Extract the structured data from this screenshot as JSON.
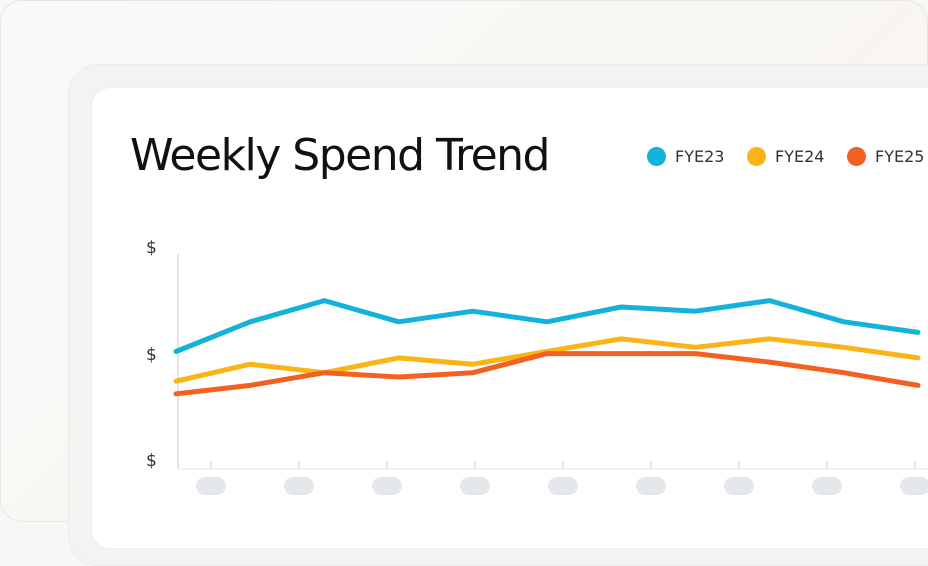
{
  "chart_data": {
    "type": "line",
    "title": "Weekly Spend Trend",
    "y_tick_labels": [
      "$",
      "$",
      "$"
    ],
    "x_tick_count": 9,
    "x_tick_labels_visible": false,
    "grid": false,
    "legend_placement": "top-right",
    "ylim": [
      0,
      100
    ],
    "x": [
      1,
      2,
      3,
      4,
      5,
      6,
      7,
      8,
      9,
      10,
      11
    ],
    "series": [
      {
        "name": "FYE23",
        "color": "#13B2D8",
        "values": [
          54,
          68,
          78,
          68,
          73,
          68,
          75,
          73,
          78,
          68,
          63
        ]
      },
      {
        "name": "FYE24",
        "color": "#FBB415",
        "values": [
          40,
          48,
          44,
          51,
          48,
          54,
          60,
          56,
          60,
          56,
          51
        ]
      },
      {
        "name": "FYE25",
        "color": "#F26122",
        "values": [
          34,
          38,
          44,
          42,
          44,
          53,
          53,
          53,
          49,
          44,
          38
        ]
      }
    ]
  }
}
